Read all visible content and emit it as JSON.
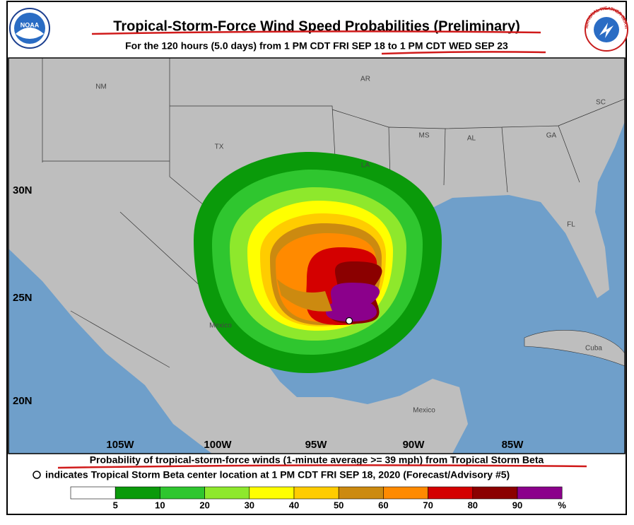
{
  "header": {
    "title": "Tropical-Storm-Force Wind Speed Probabilities (Preliminary)",
    "subtitle": "For the 120 hours (5.0 days) from 1 PM CDT FRI SEP 18 to 1 PM CDT WED SEP 23",
    "logo_left": "NOAA",
    "logo_right": "NATIONAL WEATHER SERVICE"
  },
  "map": {
    "place_labels": [
      "NM",
      "AR",
      "SC",
      "TX",
      "LA",
      "MS",
      "AL",
      "GA",
      "FL",
      "Mexico",
      "Cuba",
      "Mexico"
    ],
    "lat_labels": [
      "30N",
      "25N",
      "20N"
    ],
    "lon_labels": [
      "105W",
      "100W",
      "95W",
      "90W",
      "85W"
    ]
  },
  "footer": {
    "caption": "Probability of tropical-storm-force winds (1-minute average >= 39 mph) from Tropical Storm Beta",
    "note": "indicates Tropical Storm Beta center location at 1 PM CDT FRI SEP 18, 2020 (Forecast/Advisory #5)"
  },
  "legend": {
    "colors": [
      "#ffffff",
      "#0a9a0a",
      "#2fc62f",
      "#8ee82c",
      "#ffff00",
      "#ffcc00",
      "#cc8a10",
      "#ff8a00",
      "#d40000",
      "#8b0000",
      "#8b008b"
    ],
    "labels": [
      5,
      10,
      20,
      30,
      40,
      50,
      60,
      70,
      80,
      90
    ],
    "unit": "%"
  }
}
